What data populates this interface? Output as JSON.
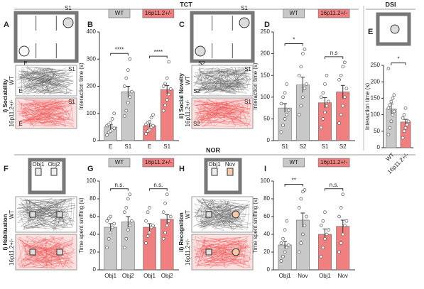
{
  "headers": [
    "TCT",
    "DSI",
    "NOR"
  ],
  "diagrams": [
    {
      "letter": "A",
      "labels": [
        "S1",
        "E"
      ],
      "side": "i) Sociability",
      "rows": [
        "WT",
        "16p11.2+/-"
      ]
    },
    {
      "letter": "C",
      "labels": [
        "S1",
        "S2"
      ],
      "side": "ii) Social Novelty",
      "rows": [
        "WT",
        "16p11.2+/-"
      ]
    },
    {
      "letter": "F",
      "labels": [
        "Obj1",
        "Obj2"
      ],
      "side": "i) Habituation",
      "rows": [
        "WT",
        "16p11.2+/-"
      ]
    },
    {
      "letter": "H",
      "labels": [
        "Obj1",
        "Nov"
      ],
      "side": "ii) Recognition",
      "rows": [
        "WT",
        "16p11.2+/-"
      ]
    }
  ],
  "dsi_letter": "E",
  "chart_data": [
    {
      "type": "bar",
      "letter": "B",
      "ylabel": "Interaction time (s)",
      "categories": [
        "E",
        "S1"
      ],
      "ylim": [
        0,
        400
      ],
      "yticks": [
        0,
        100,
        200,
        300,
        400
      ],
      "series": [
        {
          "name": "WT",
          "color": "#c8c8c8",
          "values": [
            50,
            180
          ],
          "errors": [
            8,
            20
          ],
          "points": [
            [
              20,
              30,
              35,
              40,
              45,
              55,
              60,
              65,
              80,
              100
            ],
            [
              90,
              110,
              140,
              160,
              180,
              200,
              230,
              260,
              300
            ]
          ],
          "significance": "****"
        },
        {
          "name": "16p11.2+/-",
          "color": "#f08080",
          "values": [
            55,
            188
          ],
          "errors": [
            6,
            15
          ],
          "points": [
            [
              25,
              35,
              40,
              50,
              55,
              60,
              65,
              70,
              85,
              95
            ],
            [
              110,
              130,
              150,
              170,
              190,
              200,
              210,
              230,
              290
            ]
          ],
          "significance": "****"
        }
      ]
    },
    {
      "type": "bar",
      "letter": "D",
      "ylabel": "Interaction time (s)",
      "categories": [
        "S1",
        "S2"
      ],
      "ylim": [
        0,
        250
      ],
      "yticks": [
        0,
        50,
        100,
        150,
        200,
        250
      ],
      "series": [
        {
          "name": "WT",
          "color": "#c8c8c8",
          "values": [
            75,
            128
          ],
          "errors": [
            10,
            18
          ],
          "points": [
            [
              20,
              35,
              50,
              60,
              70,
              85,
              100,
              110,
              130
            ],
            [
              60,
              80,
              100,
              120,
              130,
              150,
              170,
              200,
              210
            ]
          ],
          "significance": "*"
        },
        {
          "name": "16p11.2+/-",
          "color": "#f08080",
          "values": [
            87,
            112
          ],
          "errors": [
            12,
            15
          ],
          "points": [
            [
              30,
              50,
              65,
              80,
              90,
              100,
              110,
              130,
              150
            ],
            [
              40,
              60,
              80,
              100,
              120,
              140,
              150,
              170,
              180
            ]
          ],
          "significance": "n.s"
        }
      ]
    },
    {
      "type": "simplebar",
      "ylabel": "Interaction time (s)",
      "categories": [
        "WT",
        "16p11.2+/-"
      ],
      "colors": [
        "#c8c8c8",
        "#f08080"
      ],
      "values": [
        118,
        78
      ],
      "errors": [
        15,
        8
      ],
      "points": [
        [
          40,
          60,
          80,
          100,
          110,
          120,
          130,
          140,
          150,
          160,
          240
        ],
        [
          30,
          50,
          60,
          70,
          80,
          90,
          100,
          120
        ]
      ],
      "significance": "*",
      "ylim": [
        0,
        250
      ],
      "yticks": [
        0,
        50,
        100,
        150,
        200,
        250
      ]
    },
    {
      "type": "bar",
      "letter": "G",
      "ylabel": "Time spent sniffing (s)",
      "categories": [
        "Obj1",
        "Obj2"
      ],
      "ylim": [
        0,
        100
      ],
      "yticks": [
        0,
        20,
        40,
        60,
        80,
        100
      ],
      "series": [
        {
          "name": "WT",
          "color": "#c8c8c8",
          "values": [
            48,
            54
          ],
          "errors": [
            4,
            6
          ],
          "points": [
            [
              25,
              35,
              42,
              48,
              52,
              55,
              58,
              60
            ],
            [
              25,
              35,
              45,
              50,
              55,
              65,
              70,
              80,
              85
            ]
          ],
          "significance": "n.s."
        },
        {
          "name": "16p11.2+/-",
          "color": "#f08080",
          "values": [
            48,
            57
          ],
          "errors": [
            4,
            5
          ],
          "points": [
            [
              30,
              38,
              42,
              48,
              50,
              55,
              65,
              70
            ],
            [
              35,
              42,
              50,
              55,
              60,
              65,
              75,
              85
            ]
          ],
          "significance": "n.s."
        }
      ]
    },
    {
      "type": "bar",
      "letter": "I",
      "ylabel": "Time spent sniffing (s)",
      "categories": [
        "Obj1",
        "Nov"
      ],
      "ylim": [
        0,
        100
      ],
      "yticks": [
        0,
        20,
        40,
        60,
        80,
        100
      ],
      "series": [
        {
          "name": "WT",
          "color": "#c8c8c8",
          "values": [
            28,
            56
          ],
          "errors": [
            4,
            8
          ],
          "points": [
            [
              10,
              15,
              20,
              25,
              28,
              30,
              35,
              45,
              55
            ],
            [
              20,
              30,
              40,
              50,
              60,
              70,
              80,
              88,
              90
            ]
          ],
          "significance": "**"
        },
        {
          "name": "16p11.2+/-",
          "color": "#f08080",
          "values": [
            40,
            49
          ],
          "errors": [
            6,
            7
          ],
          "points": [
            [
              15,
              25,
              35,
              40,
              45,
              50,
              55,
              65
            ],
            [
              20,
              30,
              40,
              50,
              55,
              60,
              70,
              85
            ]
          ],
          "significance": "n.s."
        }
      ]
    }
  ]
}
